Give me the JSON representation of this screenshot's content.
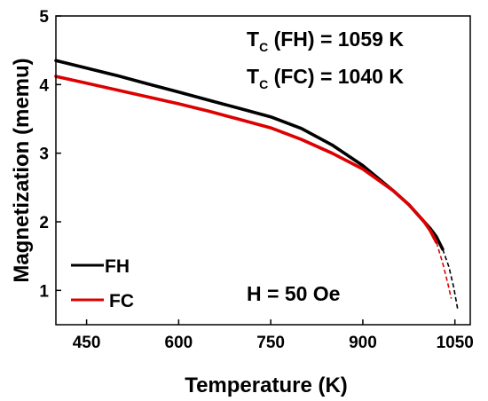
{
  "chart_data": {
    "type": "line",
    "xlabel": "Temperature (K)",
    "ylabel": "Magnetization (memu)",
    "xlim": [
      400,
      1075
    ],
    "ylim": [
      0.5,
      5
    ],
    "xticks": [
      450,
      600,
      750,
      900,
      1050
    ],
    "yticks": [
      1,
      2,
      3,
      4,
      5
    ],
    "legend_position": "bottom-left",
    "series": [
      {
        "name": "FH",
        "color": "#000000",
        "points": [
          [
            400,
            4.35
          ],
          [
            450,
            4.24
          ],
          [
            500,
            4.13
          ],
          [
            550,
            4.01
          ],
          [
            600,
            3.89
          ],
          [
            650,
            3.77
          ],
          [
            700,
            3.65
          ],
          [
            750,
            3.53
          ],
          [
            800,
            3.36
          ],
          [
            850,
            3.12
          ],
          [
            900,
            2.82
          ],
          [
            950,
            2.45
          ],
          [
            975,
            2.25
          ],
          [
            1000,
            2.0
          ],
          [
            1010,
            1.9
          ],
          [
            1020,
            1.78
          ],
          [
            1030,
            1.6
          ]
        ],
        "extrapolated": [
          [
            1030,
            1.6
          ],
          [
            1040,
            1.35
          ],
          [
            1048,
            1.05
          ],
          [
            1055,
            0.7
          ]
        ]
      },
      {
        "name": "FC",
        "color": "#dd0000",
        "points": [
          [
            400,
            4.12
          ],
          [
            450,
            4.02
          ],
          [
            500,
            3.92
          ],
          [
            550,
            3.82
          ],
          [
            600,
            3.72
          ],
          [
            650,
            3.61
          ],
          [
            700,
            3.49
          ],
          [
            750,
            3.37
          ],
          [
            800,
            3.2
          ],
          [
            850,
            3.0
          ],
          [
            900,
            2.77
          ],
          [
            950,
            2.45
          ],
          [
            975,
            2.25
          ],
          [
            1000,
            2.0
          ],
          [
            1010,
            1.87
          ],
          [
            1020,
            1.7
          ]
        ],
        "extrapolated": [
          [
            1020,
            1.7
          ],
          [
            1030,
            1.4
          ],
          [
            1038,
            1.12
          ],
          [
            1044,
            0.88
          ]
        ]
      }
    ],
    "annotations": {
      "tc_fh": {
        "main": "T",
        "sub": "C",
        "rest": " (FH) = 1059 K"
      },
      "tc_fc": {
        "main": "T",
        "sub": "C",
        "rest": " (FC) = 1040 K"
      },
      "field": "H = 50 Oe"
    }
  }
}
